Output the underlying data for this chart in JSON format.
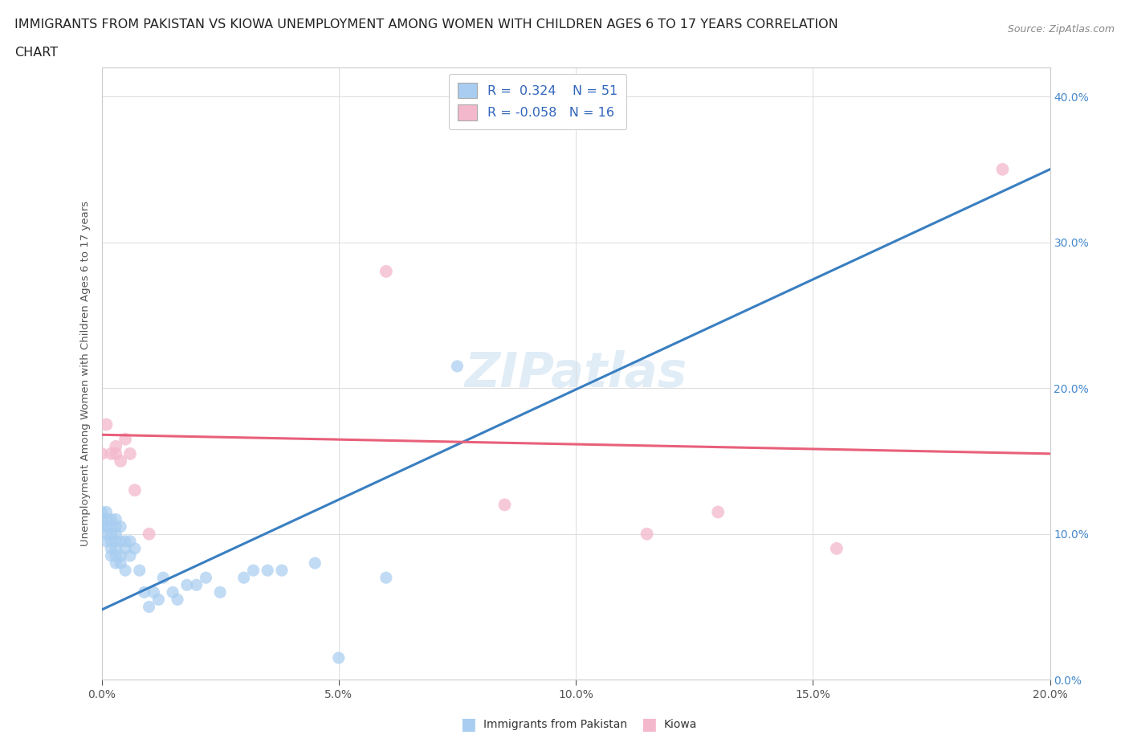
{
  "title_line1": "IMMIGRANTS FROM PAKISTAN VS KIOWA UNEMPLOYMENT AMONG WOMEN WITH CHILDREN AGES 6 TO 17 YEARS CORRELATION",
  "title_line2": "CHART",
  "source": "Source: ZipAtlas.com",
  "xlim": [
    0.0,
    0.2
  ],
  "ylim": [
    0.0,
    0.42
  ],
  "pakistan_color": "#a8cdf0",
  "kiowa_color": "#f4b8cc",
  "pakistan_line_color": "#3a7fc1",
  "kiowa_line_color": "#e8607a",
  "pakistan_R": 0.324,
  "pakistan_N": 51,
  "kiowa_R": -0.058,
  "kiowa_N": 16,
  "watermark": "ZIPatlas",
  "pakistan_points_x": [
    0.0,
    0.0,
    0.0,
    0.001,
    0.001,
    0.001,
    0.001,
    0.001,
    0.002,
    0.002,
    0.002,
    0.002,
    0.002,
    0.002,
    0.003,
    0.003,
    0.003,
    0.003,
    0.003,
    0.003,
    0.003,
    0.004,
    0.004,
    0.004,
    0.004,
    0.005,
    0.005,
    0.005,
    0.006,
    0.006,
    0.007,
    0.008,
    0.009,
    0.01,
    0.011,
    0.012,
    0.013,
    0.015,
    0.016,
    0.018,
    0.02,
    0.022,
    0.025,
    0.03,
    0.032,
    0.035,
    0.038,
    0.045,
    0.05,
    0.06,
    0.075
  ],
  "pakistan_points_y": [
    0.105,
    0.11,
    0.115,
    0.095,
    0.1,
    0.105,
    0.11,
    0.115,
    0.085,
    0.09,
    0.095,
    0.1,
    0.105,
    0.11,
    0.08,
    0.085,
    0.09,
    0.095,
    0.1,
    0.105,
    0.11,
    0.08,
    0.085,
    0.095,
    0.105,
    0.075,
    0.09,
    0.095,
    0.085,
    0.095,
    0.09,
    0.075,
    0.06,
    0.05,
    0.06,
    0.055,
    0.07,
    0.06,
    0.055,
    0.065,
    0.065,
    0.07,
    0.06,
    0.07,
    0.075,
    0.075,
    0.075,
    0.08,
    0.015,
    0.07,
    0.215
  ],
  "kiowa_points_x": [
    0.0,
    0.001,
    0.002,
    0.003,
    0.003,
    0.004,
    0.005,
    0.006,
    0.007,
    0.01,
    0.06,
    0.085,
    0.115,
    0.13,
    0.155,
    0.19
  ],
  "kiowa_points_y": [
    0.155,
    0.175,
    0.155,
    0.155,
    0.16,
    0.15,
    0.165,
    0.155,
    0.13,
    0.1,
    0.28,
    0.12,
    0.1,
    0.115,
    0.09,
    0.35
  ],
  "pakistan_trend_x0": 0.0,
  "pakistan_trend_y0": 0.048,
  "pakistan_trend_x1": 0.2,
  "pakistan_trend_y1": 0.35,
  "kiowa_trend_x0": 0.0,
  "kiowa_trend_y0": 0.168,
  "kiowa_trend_x1": 0.2,
  "kiowa_trend_y1": 0.155
}
